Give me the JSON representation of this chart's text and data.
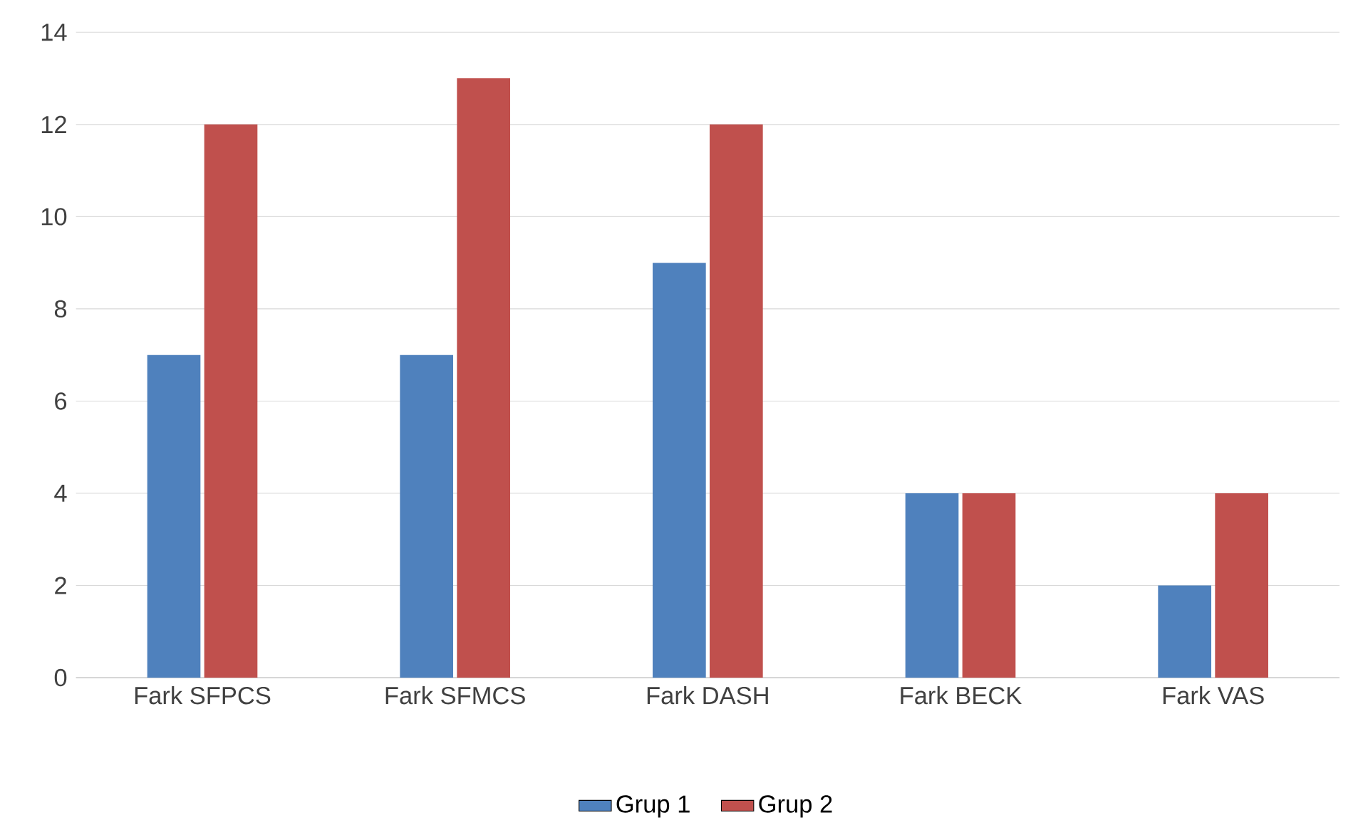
{
  "chart_data": {
    "type": "bar",
    "categories": [
      "Fark SFPCS",
      "Fark SFMCS",
      "Fark DASH",
      "Fark BECK",
      "Fark VAS"
    ],
    "series": [
      {
        "name": "Grup 1",
        "color": "#4f81bd",
        "values": [
          7,
          7,
          9,
          4,
          2
        ]
      },
      {
        "name": "Grup 2",
        "color": "#c0504d",
        "values": [
          12,
          13,
          12,
          4,
          4
        ]
      }
    ],
    "ylim": [
      0,
      14
    ],
    "yticks": [
      0,
      2,
      4,
      6,
      8,
      10,
      12,
      14
    ],
    "grid": "y",
    "legend": "bottom"
  }
}
